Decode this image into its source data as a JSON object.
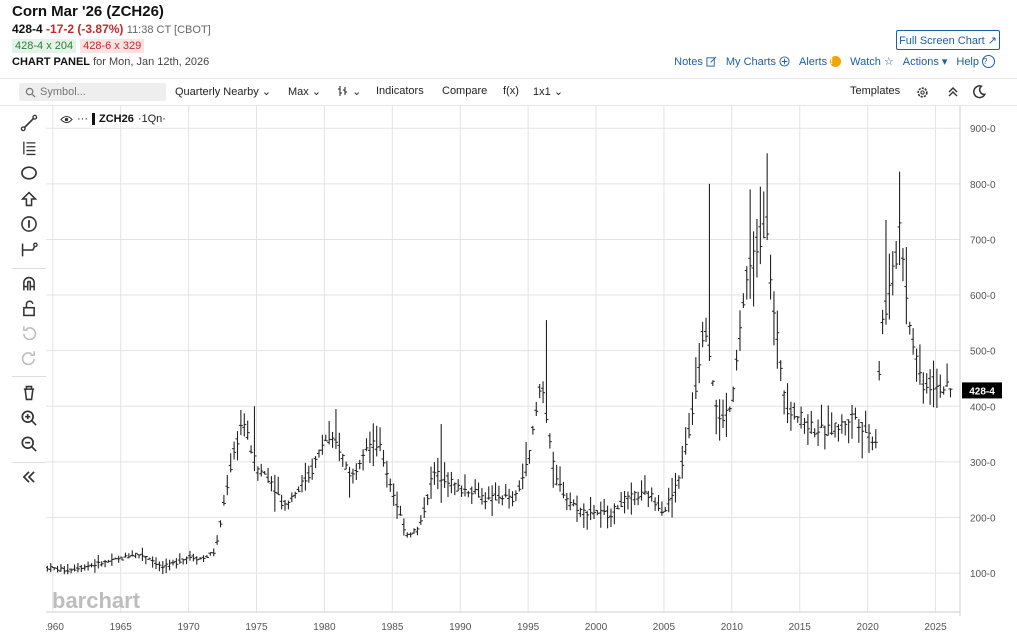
{
  "header": {
    "title": "Corn Mar '26 (ZCH26)",
    "last": "428-4",
    "change": "-17-2 (-3.87%)",
    "time": "11:38 CT [CBOT]",
    "bid": "428-4 x 204",
    "ask": "428-6 x 329",
    "panel_label": "CHART PANEL",
    "panel_date": "for Mon, Jan 12th, 2026",
    "fullscreen_label": "Full Screen Chart",
    "links": {
      "notes": "Notes",
      "mycharts": "My Charts",
      "alerts": "Alerts",
      "watch": "Watch",
      "actions": "Actions",
      "help": "Help"
    }
  },
  "toolbar": {
    "search_placeholder": "Symbol...",
    "period": "Quarterly Nearby",
    "range": "Max",
    "indicators": "Indicators",
    "compare": "Compare",
    "fx": "f(x)",
    "layout": "1x1",
    "templates": "Templates"
  },
  "legend": {
    "symbol": "ZCH26",
    "interval": "·1Qn·"
  },
  "watermark": "barchart",
  "colors": {
    "bar": "#222222",
    "grid": "#e3e3e3",
    "link": "#1a5fa8",
    "down": "#c62828",
    "up": "#2e7d32",
    "price_tag": "#000000"
  },
  "left_tools": [
    "line-tool-icon",
    "fib-tool-icon",
    "shape-tool-icon",
    "arrow-tool-icon",
    "annotation-tool-icon",
    "measure-tool-icon",
    "magnet-icon",
    "lock-icon",
    "undo-icon",
    "redo-icon",
    "trash-icon",
    "zoom-in-icon",
    "zoom-out-icon",
    "collapse-icon"
  ],
  "chart_data": {
    "type": "ohlc",
    "title": "",
    "xlabel": "",
    "ylabel": "",
    "xlim": [
      1959.5,
      2026.8
    ],
    "ylim": [
      30,
      940
    ],
    "y_ticks": [
      100,
      200,
      300,
      400,
      500,
      600,
      700,
      800,
      900
    ],
    "y_tick_labels": [
      "100-0",
      "200-0",
      "300-0",
      "400-0",
      "500-0",
      "600-0",
      "700-0",
      "800-0",
      "900-0"
    ],
    "x_ticks": [
      1960,
      1965,
      1970,
      1975,
      1980,
      1985,
      1990,
      1995,
      2000,
      2005,
      2010,
      2015,
      2020,
      2025
    ],
    "x_tick_labels": [
      "1960",
      "1965",
      "1970",
      "1975",
      "1980",
      "1985",
      "1990",
      "1995",
      "2000",
      "2005",
      "2010",
      "2015",
      "2020",
      "2025"
    ],
    "last_price": 428.5,
    "last_price_label": "428-4",
    "grid": true,
    "anchors": [
      [
        1959.6,
        110
      ],
      [
        1961,
        105
      ],
      [
        1962,
        110
      ],
      [
        1963,
        115
      ],
      [
        1964,
        120
      ],
      [
        1965,
        125
      ],
      [
        1966,
        135
      ],
      [
        1967,
        130
      ],
      [
        1968,
        110
      ],
      [
        1969,
        118
      ],
      [
        1970,
        130
      ],
      [
        1971,
        125
      ],
      [
        1972,
        140
      ],
      [
        1973,
        280
      ],
      [
        1974,
        380
      ],
      [
        1974.5,
        330
      ],
      [
        1975,
        290
      ],
      [
        1976,
        270
      ],
      [
        1977,
        220
      ],
      [
        1978,
        250
      ],
      [
        1979,
        280
      ],
      [
        1980,
        340
      ],
      [
        1981,
        330
      ],
      [
        1982,
        270
      ],
      [
        1983,
        330
      ],
      [
        1984,
        330
      ],
      [
        1985,
        250
      ],
      [
        1986,
        170
      ],
      [
        1987,
        180
      ],
      [
        1988,
        280
      ],
      [
        1989,
        270
      ],
      [
        1990,
        250
      ],
      [
        1991,
        250
      ],
      [
        1992,
        230
      ],
      [
        1993,
        240
      ],
      [
        1994,
        230
      ],
      [
        1995,
        300
      ],
      [
        1996,
        450
      ],
      [
        1996.8,
        300
      ],
      [
        1997,
        270
      ],
      [
        1998,
        230
      ],
      [
        1999,
        210
      ],
      [
        2000,
        210
      ],
      [
        2001,
        205
      ],
      [
        2002,
        230
      ],
      [
        2003,
        240
      ],
      [
        2004,
        240
      ],
      [
        2005,
        210
      ],
      [
        2006,
        260
      ],
      [
        2007,
        370
      ],
      [
        2008,
        560
      ],
      [
        2008.6,
        450
      ],
      [
        2009,
        370
      ],
      [
        2010,
        400
      ],
      [
        2011,
        620
      ],
      [
        2012,
        700
      ],
      [
        2012.6,
        730
      ],
      [
        2013,
        580
      ],
      [
        2013.8,
        440
      ],
      [
        2014,
        400
      ],
      [
        2015,
        380
      ],
      [
        2016,
        360
      ],
      [
        2017,
        355
      ],
      [
        2018,
        365
      ],
      [
        2019,
        385
      ],
      [
        2020,
        350
      ],
      [
        2020.6,
        340
      ],
      [
        2021,
        540
      ],
      [
        2022,
        650
      ],
      [
        2022.4,
        740
      ],
      [
        2023,
        560
      ],
      [
        2024,
        440
      ],
      [
        2025,
        440
      ],
      [
        2026.1,
        428.5
      ]
    ],
    "spikes": [
      [
        2008.4,
        800
      ],
      [
        2012.6,
        855
      ],
      [
        2022.3,
        822
      ],
      [
        1996.4,
        555
      ],
      [
        1974.8,
        400
      ],
      [
        1980.9,
        395
      ],
      [
        1983.8,
        365
      ],
      [
        1988.6,
        368
      ],
      [
        2011.3,
        790
      ],
      [
        2021.4,
        735
      ]
    ]
  }
}
